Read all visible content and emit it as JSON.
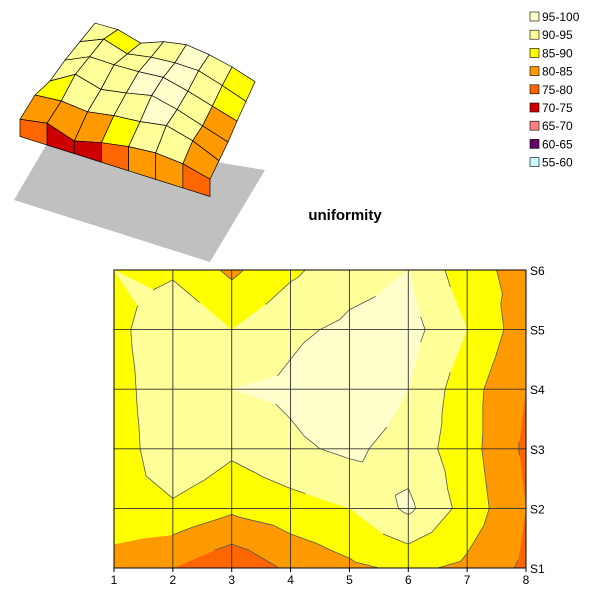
{
  "chart_data": [
    {
      "type": "surface",
      "view": "3d",
      "title": "",
      "x": [
        1,
        2,
        3,
        4,
        5,
        6,
        7,
        8
      ],
      "y": [
        "S1",
        "S2",
        "S3",
        "S4",
        "S5",
        "S6"
      ],
      "z": [
        [
          80,
          84,
          76,
          82,
          86,
          88,
          86,
          80
        ],
        [
          86,
          88,
          86,
          90,
          92,
          96,
          90,
          80
        ],
        [
          83,
          96,
          90,
          94,
          99,
          94,
          87,
          80
        ],
        [
          86,
          96,
          96,
          97,
          99,
          94,
          88,
          82
        ],
        [
          87,
          96,
          90,
          94,
          96,
          96,
          90,
          83
        ],
        [
          88,
          89,
          84,
          92,
          96,
          94,
          90,
          84
        ]
      ]
    },
    {
      "type": "contour",
      "title": "uniformity",
      "x": [
        1,
        2,
        3,
        4,
        5,
        6,
        7,
        8
      ],
      "y": [
        "S1",
        "S2",
        "S3",
        "S4",
        "S5",
        "S6"
      ],
      "z": [
        [
          83,
          80,
          76,
          81,
          84,
          86,
          84,
          79
        ],
        [
          88,
          89,
          86,
          88,
          90,
          96,
          88,
          80
        ],
        [
          86,
          95,
          91,
          94,
          96,
          93,
          87,
          79
        ],
        [
          87,
          95,
          95,
          96,
          99,
          95,
          87,
          80
        ],
        [
          88,
          95,
          90,
          94,
          96,
          97,
          90,
          82
        ],
        [
          90,
          89,
          84,
          89,
          93,
          95,
          87,
          83
        ]
      ],
      "legend": {
        "position": "top-right",
        "levels": [
          {
            "label": "95-100",
            "min": 95,
            "max": 100,
            "color": "#ffffcc"
          },
          {
            "label": "90-95",
            "min": 90,
            "max": 95,
            "color": "#ffff99"
          },
          {
            "label": "85-90",
            "min": 85,
            "max": 90,
            "color": "#ffff00"
          },
          {
            "label": "80-85",
            "min": 80,
            "max": 85,
            "color": "#ff9900"
          },
          {
            "label": "75-80",
            "min": 75,
            "max": 80,
            "color": "#ff6600"
          },
          {
            "label": "70-75",
            "min": 70,
            "max": 75,
            "color": "#cc0000"
          },
          {
            "label": "65-70",
            "min": 65,
            "max": 70,
            "color": "#ff8080"
          },
          {
            "label": "60-65",
            "min": 60,
            "max": 65,
            "color": "#660066"
          },
          {
            "label": "55-60",
            "min": 55,
            "max": 60,
            "color": "#ccffff"
          }
        ]
      },
      "grid": true
    }
  ]
}
